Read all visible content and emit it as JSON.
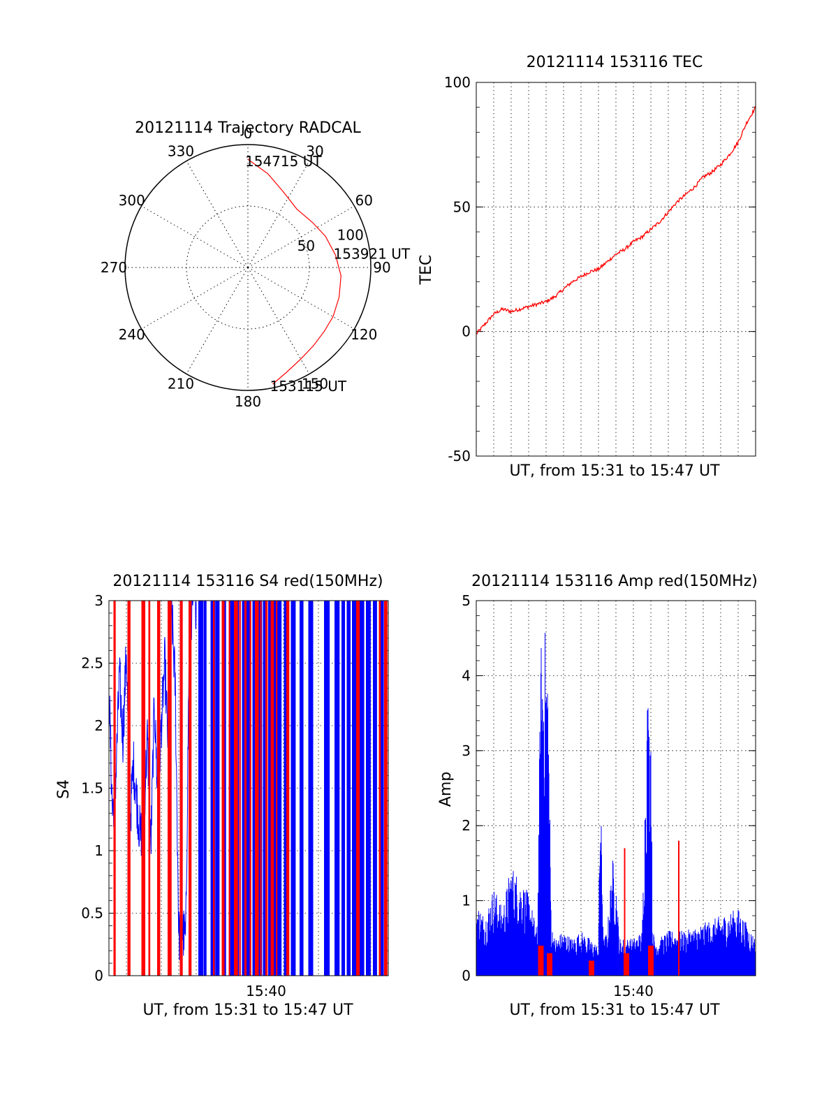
{
  "colors": {
    "red": "#ff0000",
    "blue": "#0000ff",
    "grid": "#000000"
  },
  "chart_data": [
    {
      "id": "trajectory",
      "type": "polar",
      "title": "20121114 Trajectory RADCAL",
      "azimuth_labels": [
        "0",
        "30",
        "60",
        "90",
        "120",
        "150",
        "180",
        "210",
        "240",
        "270",
        "300",
        "330"
      ],
      "radial_labels": [
        "50",
        "100"
      ],
      "rlim": [
        0,
        100
      ],
      "grid": true,
      "track": {
        "color": "red",
        "points": [
          {
            "az": 168,
            "r": 97
          },
          {
            "az": 160,
            "r": 91
          },
          {
            "az": 150,
            "r": 86
          },
          {
            "az": 140,
            "r": 83
          },
          {
            "az": 130,
            "r": 81
          },
          {
            "az": 120,
            "r": 80
          },
          {
            "az": 108,
            "r": 78
          },
          {
            "az": 95,
            "r": 76
          },
          {
            "az": 82,
            "r": 72
          },
          {
            "az": 68,
            "r": 68
          },
          {
            "az": 55,
            "r": 64
          },
          {
            "az": 40,
            "r": 62
          },
          {
            "az": 25,
            "r": 68
          },
          {
            "az": 12,
            "r": 78
          },
          {
            "az": 0,
            "r": 88
          }
        ],
        "annotations": [
          {
            "text": "153115 UT",
            "az": 168,
            "r": 97
          },
          {
            "text": "153921 UT",
            "az": 80,
            "r": 73
          },
          {
            "text": "154715 UT",
            "az": 0,
            "r": 88
          }
        ]
      }
    },
    {
      "id": "tec",
      "type": "line",
      "title": "20121114 153116 TEC",
      "xlabel": "UT, from 15:31 to 15:47 UT",
      "ylabel": "TEC",
      "xlim": [
        0,
        16
      ],
      "ylim": [
        -50,
        100
      ],
      "yticks": [
        "-50",
        "0",
        "50",
        "100"
      ],
      "grid": true,
      "series": [
        {
          "color": "red",
          "x": [
            0,
            0.5,
            1,
            1.5,
            2,
            2.5,
            3,
            3.5,
            4,
            4.5,
            5,
            5.5,
            6,
            6.5,
            7,
            7.5,
            8,
            8.5,
            9,
            9.5,
            10,
            10.5,
            11,
            11.5,
            12,
            12.5,
            13,
            13.5,
            14,
            14.5,
            15,
            15.5,
            16
          ],
          "y": [
            -1,
            3,
            7,
            9,
            8,
            9,
            10,
            11,
            12,
            14,
            17,
            20,
            22,
            24,
            25,
            28,
            31,
            33,
            36,
            38,
            41,
            44,
            48,
            52,
            55,
            58,
            62,
            64,
            67,
            71,
            76,
            84,
            90
          ]
        }
      ]
    },
    {
      "id": "s4",
      "type": "line",
      "title": "20121114 153116 S4 red(150MHz)",
      "xlabel": "UT, from 15:31 to 15:47 UT",
      "ylabel": "S4",
      "xlim": [
        0,
        16
      ],
      "ylim": [
        0,
        3
      ],
      "yticks": [
        "0",
        "0.5",
        "1",
        "1.5",
        "2",
        "2.5",
        "3"
      ],
      "xticks": [
        {
          "value": 9,
          "label": "15:40"
        }
      ],
      "grid": true,
      "series": [
        {
          "name": "",
          "color": "blue",
          "x": [
            0,
            0.2,
            0.4,
            0.6,
            0.8,
            1.0,
            1.2,
            1.4,
            1.6,
            1.8,
            2.0,
            2.2,
            2.4,
            2.6,
            2.8,
            3.0,
            3.2,
            3.4,
            3.6,
            3.8,
            4.0,
            4.2,
            4.4,
            4.6,
            4.8,
            5.0
          ],
          "y": [
            2.3,
            1.3,
            1.6,
            2.4,
            1.9,
            2.6,
            1.2,
            1.7,
            1.4,
            1.1,
            1.3,
            1.9,
            1.0,
            2.2,
            1.4,
            2.0,
            2.5,
            1.8,
            2.9,
            2.3,
            0.32,
            0.35,
            0.3,
            2.7,
            3.0,
            3.0
          ]
        }
      ],
      "red_spike_x": [
        0.3,
        1.1,
        1.9,
        2.3,
        2.8,
        3.4,
        4.1,
        4.6,
        6.0,
        6.5,
        6.9,
        7.2,
        7.5,
        7.8,
        8.1,
        8.4,
        8.7,
        9.0,
        9.3,
        9.6,
        10.2,
        14.2,
        15.5,
        15.8
      ],
      "blue_spike_x": [
        5.2,
        5.5,
        5.9,
        6.2,
        6.6,
        7.0,
        7.3,
        7.7,
        8.0,
        8.3,
        8.6,
        8.9,
        9.2,
        9.5,
        9.8,
        10.1,
        10.5,
        11.0,
        11.5,
        12.4,
        13.0,
        13.4,
        13.7,
        14.0,
        14.4,
        14.8,
        15.2,
        15.6
      ]
    },
    {
      "id": "amp",
      "type": "line",
      "title": "20121114 153116 Amp red(150MHz)",
      "xlabel": "UT, from 15:31 to 15:47 UT",
      "ylabel": "Amp",
      "xlim": [
        0,
        16
      ],
      "ylim": [
        0,
        5
      ],
      "yticks": [
        "0",
        "1",
        "2",
        "3",
        "4",
        "5"
      ],
      "xticks": [
        {
          "value": 9,
          "label": "15:40"
        }
      ],
      "grid": true,
      "series": [
        {
          "name": "",
          "color": "blue",
          "x": [
            0,
            0.5,
            1,
            1.5,
            2,
            2.5,
            3,
            3.5,
            3.7,
            3.9,
            4.1,
            4.3,
            4.5,
            5,
            5.5,
            6,
            6.5,
            7,
            7.1,
            7.3,
            7.5,
            7.8,
            8.0,
            8.2,
            8.5,
            9,
            9.5,
            9.8,
            9.9,
            10.0,
            10.1,
            10.3,
            10.5,
            11,
            12,
            13,
            14,
            15,
            16
          ],
          "y": [
            1.0,
            0.8,
            1.2,
            0.9,
            1.5,
            1.3,
            1.1,
            0.6,
            4.5,
            4.7,
            4.4,
            0.7,
            0.5,
            0.6,
            0.5,
            0.6,
            0.5,
            0.4,
            2.7,
            0.5,
            0.6,
            1.6,
            1.3,
            0.5,
            0.5,
            0.5,
            0.6,
            3.9,
            3.6,
            3.7,
            0.6,
            0.5,
            0.5,
            0.6,
            0.6,
            0.7,
            0.8,
            0.9,
            0.5
          ]
        },
        {
          "name": "",
          "color": "red",
          "x": [
            3.7,
            4.2,
            6.6,
            8.5,
            8.6,
            10.0,
            11.6
          ],
          "y": [
            0.4,
            0.3,
            0.2,
            1.7,
            0.3,
            0.4,
            1.8
          ]
        }
      ]
    }
  ]
}
